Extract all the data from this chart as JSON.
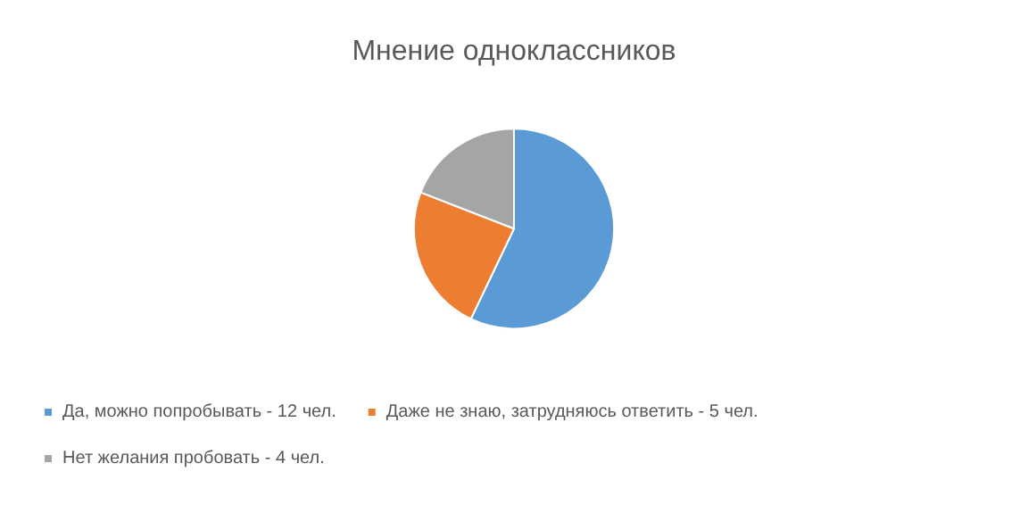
{
  "chart_data": {
    "type": "pie",
    "title": "Мнение одноклассников",
    "categories": [
      "Да, можно попробывать - 12 чел.",
      "Даже не знаю, затрудняюсь ответить - 5 чел.",
      "Нет желания пробовать - 4 чел."
    ],
    "values": [
      57.1,
      23.8,
      19.1
    ],
    "colors": [
      "#5b9bd5",
      "#ed7d31",
      "#a5a5a5"
    ],
    "legend": "bottom"
  }
}
